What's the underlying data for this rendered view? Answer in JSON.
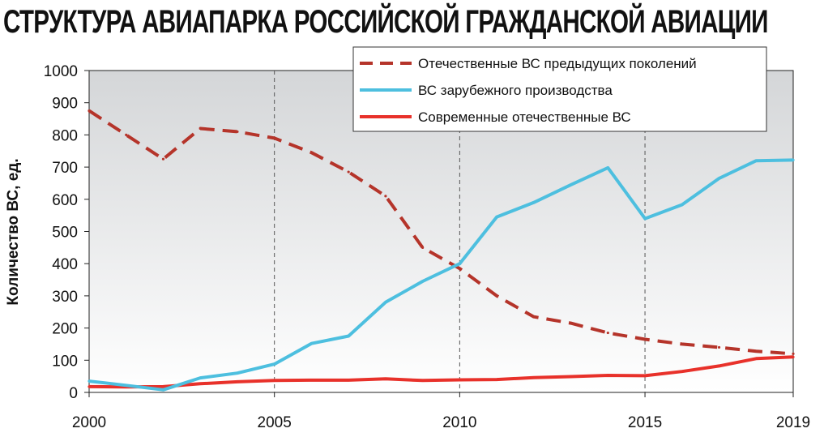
{
  "page": {
    "title": "СТРУКТУРА АВИАПАРКА РОССИЙСКОЙ ГРАЖДАНСКОЙ АВИАЦИИ"
  },
  "chart_data": {
    "type": "line",
    "title": "СТРУКТУРА АВИАПАРКА РОССИЙСКОЙ ГРАЖДАНСКОЙ АВИАЦИИ",
    "xlabel": "",
    "ylabel": "Количество ВС, ед.",
    "xlim": [
      2000,
      2019
    ],
    "ylim": [
      0,
      1000
    ],
    "x_ticks": [
      "2000",
      "2005",
      "2010",
      "2015",
      "2019"
    ],
    "y_ticks": [
      "0",
      "100",
      "200",
      "300",
      "400",
      "500",
      "600",
      "700",
      "800",
      "900",
      "1000"
    ],
    "grid": "vertical dashed at 2005, 2010, 2015",
    "legend_position": "top-right",
    "series": [
      {
        "name": "Отечественные ВС предыдущих поколений",
        "color": "#b5342a",
        "style": "dashed",
        "x": [
          2000,
          2001,
          2002,
          2003,
          2004,
          2005,
          2006,
          2007,
          2008,
          2009,
          2010,
          2011,
          2012,
          2013,
          2014,
          2015,
          2016,
          2017,
          2018,
          2019
        ],
        "values": [
          875,
          800,
          725,
          820,
          810,
          790,
          745,
          685,
          610,
          450,
          385,
          300,
          235,
          215,
          185,
          165,
          150,
          140,
          128,
          120
        ]
      },
      {
        "name": "ВС зарубежного производства",
        "color": "#4dbfdf",
        "style": "solid",
        "x": [
          2000,
          2001,
          2002,
          2003,
          2004,
          2005,
          2006,
          2007,
          2008,
          2009,
          2010,
          2011,
          2012,
          2013,
          2014,
          2015,
          2016,
          2017,
          2018,
          2019
        ],
        "values": [
          35,
          22,
          8,
          45,
          60,
          88,
          152,
          175,
          280,
          345,
          400,
          545,
          590,
          645,
          698,
          540,
          583,
          665,
          720,
          722
        ]
      },
      {
        "name": "Современные отечественные ВС",
        "color": "#e8312a",
        "style": "solid",
        "x": [
          2000,
          2001,
          2002,
          2003,
          2004,
          2005,
          2006,
          2007,
          2008,
          2009,
          2010,
          2011,
          2012,
          2013,
          2014,
          2015,
          2016,
          2017,
          2018,
          2019
        ],
        "values": [
          18,
          17,
          18,
          27,
          33,
          37,
          38,
          38,
          42,
          37,
          39,
          40,
          46,
          49,
          53,
          52,
          65,
          82,
          105,
          110
        ]
      }
    ]
  }
}
